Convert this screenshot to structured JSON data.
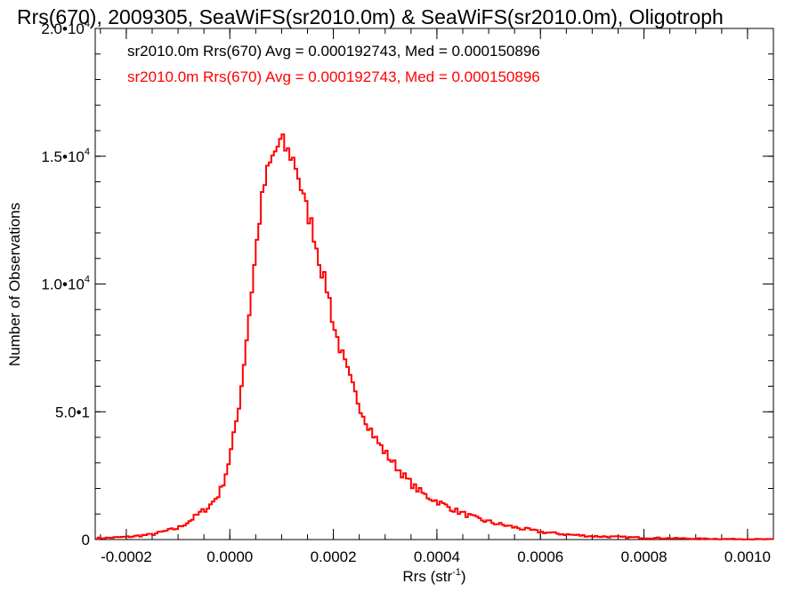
{
  "chart_data": {
    "type": "bar",
    "title": "Rrs(670), 2009305, SeaWiFS(sr2010.0m) & SeaWiFS(sr2010.0m), Oligotroph",
    "xlabel_main": "Rrs (str",
    "xlabel_sup": "-1",
    "xlabel_end": ")",
    "ylabel": "Number of Observations",
    "xlim": [
      -0.00026,
      0.00105
    ],
    "ylim": [
      0,
      20000
    ],
    "xticks": [
      -0.0002,
      0.0,
      0.0002,
      0.0004,
      0.0006,
      0.0008,
      0.001
    ],
    "xtick_labels": [
      "-0.0002",
      "0.0000",
      "0.0002",
      "0.0004",
      "0.0006",
      "0.0008",
      "0.0010"
    ],
    "yticks": [
      0,
      5000,
      10000,
      15000,
      20000
    ],
    "ytick_labels": [
      {
        "base": "0",
        "exp": ""
      },
      {
        "base": "5.0•1",
        "exp": ""
      },
      {
        "base": "1.0•10",
        "exp": "4"
      },
      {
        "base": "1.5•10",
        "exp": "4"
      },
      {
        "base": "2.0•10",
        "exp": "4"
      }
    ],
    "legend": [
      {
        "text": "sr2010.0m Rrs(670) Avg = 0.000192743, Med = 0.000150896",
        "color": "#000000"
      },
      {
        "text": "sr2010.0m Rrs(670) Avg = 0.000192743, Med = 0.000150896",
        "color": "#ff0000"
      }
    ],
    "series_color": "#ff0000",
    "bin_width": 5e-06,
    "series": [
      {
        "x": [
          -0.00026,
          -0.0002,
          -0.00015,
          -0.0001,
          -8e-05,
          -6e-05,
          -4e-05,
          -2e-05,
          -1e-05,
          0.0,
          1e-05,
          2e-05,
          3e-05,
          4e-05,
          5e-05,
          6e-05,
          7e-05,
          8e-05,
          9e-05,
          0.0001,
          0.00011,
          0.00012,
          0.00013,
          0.00014,
          0.00015,
          0.00016,
          0.00017,
          0.00018,
          0.00019,
          0.0002,
          0.00021,
          0.00022,
          0.00023,
          0.00024,
          0.00025,
          0.00026,
          0.00027,
          0.00028,
          0.0003,
          0.00032,
          0.00034,
          0.00036,
          0.00038,
          0.0004,
          0.00042,
          0.00044,
          0.00046,
          0.00048,
          0.0005,
          0.00052,
          0.00055,
          0.0006,
          0.00065,
          0.0007,
          0.0008,
          0.0009,
          0.001,
          0.00105
        ],
        "values": [
          50,
          100,
          200,
          450,
          700,
          1000,
          1300,
          1800,
          2400,
          3200,
          4300,
          5600,
          7400,
          9300,
          11200,
          13000,
          14200,
          14800,
          15300,
          15600,
          15200,
          15000,
          14500,
          13500,
          12800,
          12200,
          11200,
          10300,
          9700,
          8400,
          7700,
          7000,
          6400,
          5800,
          5300,
          4800,
          4400,
          4000,
          3400,
          2900,
          2400,
          2000,
          1700,
          1500,
          1300,
          1100,
          950,
          800,
          700,
          600,
          480,
          300,
          200,
          130,
          70,
          35,
          15,
          10
        ]
      }
    ]
  }
}
